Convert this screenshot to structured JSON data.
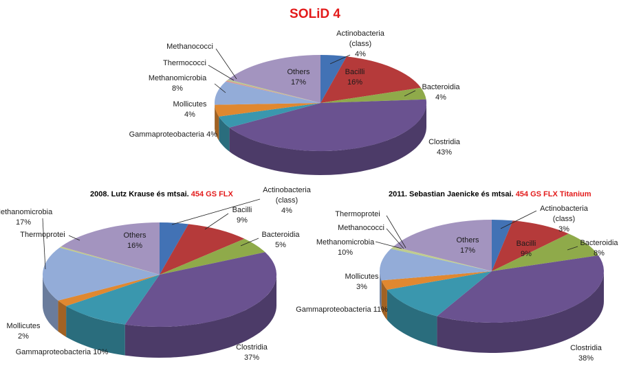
{
  "title": "SOLiD 4",
  "colors": {
    "Actinobacteria (class)": "#4272b5",
    "Bacilli": "#b53a3a",
    "Bacteroidia": "#8faa4a",
    "Clostridia": "#6a5290",
    "Gammaproteobacteria": "#3a97ae",
    "Mollicutes": "#e08830",
    "Methanomicrobia": "#93acd8",
    "Thermococci": "#d89696",
    "Methanococci": "#b8cc8c",
    "Thermoprotei": "#c2c98a",
    "Others": "#a394bf"
  },
  "chart_data": [
    {
      "type": "pie",
      "title": "SOLiD 4",
      "subtitle": null,
      "slices": [
        {
          "name": "Actinobacteria (class)",
          "value": 4
        },
        {
          "name": "Bacilli",
          "value": 16
        },
        {
          "name": "Bacteroidia",
          "value": 4
        },
        {
          "name": "Clostridia",
          "value": 43
        },
        {
          "name": "Gammaproteobacteria",
          "value": 4
        },
        {
          "name": "Mollicutes",
          "value": 4
        },
        {
          "name": "Methanomicrobia",
          "value": 8
        },
        {
          "name": "Thermococci",
          "value": 0.4
        },
        {
          "name": "Methanococci",
          "value": 0.4
        },
        {
          "name": "Others",
          "value": 17
        }
      ],
      "labels": [
        {
          "slice": 0,
          "lines": [
            "Actinobacteria",
            "(class)",
            "4%"
          ],
          "align": "middle",
          "leader": true
        },
        {
          "slice": 1,
          "lines": [
            "Bacilli",
            "16%"
          ],
          "align": "middle",
          "leader": false
        },
        {
          "slice": 2,
          "lines": [
            "Bacteroidia",
            "4%"
          ],
          "align": "middle",
          "leader": true
        },
        {
          "slice": 3,
          "lines": [
            "Clostridia",
            "43%"
          ],
          "align": "middle",
          "leader": false
        },
        {
          "slice": 4,
          "lines": [
            "Gammaproteobacteria 4%"
          ],
          "align": "end",
          "leader": false
        },
        {
          "slice": 5,
          "lines": [
            "Mollicutes",
            "4%"
          ],
          "align": "middle",
          "leader": false
        },
        {
          "slice": 6,
          "lines": [
            "Methanomicrobia",
            "8%"
          ],
          "align": "middle",
          "leader": true
        },
        {
          "slice": 7,
          "lines": [
            "Thermococci"
          ],
          "align": "end",
          "leader": true
        },
        {
          "slice": 8,
          "lines": [
            "Methanococci"
          ],
          "align": "end",
          "leader": true
        },
        {
          "slice": 9,
          "lines": [
            "Others",
            "17%"
          ],
          "align": "middle",
          "leader": false
        }
      ]
    },
    {
      "type": "pie",
      "title": null,
      "subtitle": {
        "text": "2008. Lutz Krause  és mtsai. ",
        "highlight": "454 GS FLX"
      },
      "slices": [
        {
          "name": "Actinobacteria (class)",
          "value": 4
        },
        {
          "name": "Bacilli",
          "value": 9
        },
        {
          "name": "Bacteroidia",
          "value": 5
        },
        {
          "name": "Clostridia",
          "value": 37
        },
        {
          "name": "Gammaproteobacteria",
          "value": 10
        },
        {
          "name": "Mollicutes",
          "value": 2
        },
        {
          "name": "Methanomicrobia",
          "value": 17
        },
        {
          "name": "Thermoprotei",
          "value": 0.4
        },
        {
          "name": "Others",
          "value": 16
        }
      ],
      "labels": [
        {
          "slice": 0,
          "lines": [
            "Actinobacteria",
            "(class)",
            "4%"
          ],
          "align": "middle",
          "leader": true
        },
        {
          "slice": 1,
          "lines": [
            "Bacilli",
            "9%"
          ],
          "align": "middle",
          "leader": true
        },
        {
          "slice": 2,
          "lines": [
            "Bacteroidia",
            "5%"
          ],
          "align": "middle",
          "leader": true
        },
        {
          "slice": 3,
          "lines": [
            "Clostridia",
            "37%"
          ],
          "align": "middle",
          "leader": false
        },
        {
          "slice": 4,
          "lines": [
            "Gammaproteobacteria 10%"
          ],
          "align": "middle",
          "leader": false
        },
        {
          "slice": 5,
          "lines": [
            "Mollicutes",
            "2%"
          ],
          "align": "middle",
          "leader": false
        },
        {
          "slice": 6,
          "lines": [
            "Methanomicrobia",
            "17%"
          ],
          "align": "middle",
          "leader": true
        },
        {
          "slice": 7,
          "lines": [
            "Thermoprotei"
          ],
          "align": "middle",
          "leader": true
        },
        {
          "slice": 8,
          "lines": [
            "Others",
            "16%"
          ],
          "align": "middle",
          "leader": false
        }
      ]
    },
    {
      "type": "pie",
      "title": null,
      "subtitle": {
        "text": "2011. Sebastian Jaenicke  és mtsai. ",
        "highlight": "454  GS FLX Titanium"
      },
      "slices": [
        {
          "name": "Actinobacteria (class)",
          "value": 3
        },
        {
          "name": "Bacilli",
          "value": 9
        },
        {
          "name": "Bacteroidia",
          "value": 8
        },
        {
          "name": "Clostridia",
          "value": 38
        },
        {
          "name": "Gammaproteobacteria",
          "value": 11
        },
        {
          "name": "Mollicutes",
          "value": 3
        },
        {
          "name": "Methanomicrobia",
          "value": 10
        },
        {
          "name": "Methanococci",
          "value": 0.4
        },
        {
          "name": "Thermoprotei",
          "value": 0.4
        },
        {
          "name": "Others",
          "value": 17
        }
      ],
      "labels": [
        {
          "slice": 0,
          "lines": [
            "Actinobacteria",
            "(class)",
            "3%"
          ],
          "align": "middle",
          "leader": true
        },
        {
          "slice": 1,
          "lines": [
            "Bacilli",
            "9%"
          ],
          "align": "middle",
          "leader": false
        },
        {
          "slice": 2,
          "lines": [
            "Bacteroidia",
            "8%"
          ],
          "align": "middle",
          "leader": true
        },
        {
          "slice": 3,
          "lines": [
            "Clostridia",
            "38%"
          ],
          "align": "middle",
          "leader": false
        },
        {
          "slice": 4,
          "lines": [
            "Gammaproteobacteria 11%"
          ],
          "align": "middle",
          "leader": false
        },
        {
          "slice": 5,
          "lines": [
            "Mollicutes",
            "3%"
          ],
          "align": "middle",
          "leader": false
        },
        {
          "slice": 6,
          "lines": [
            "Methanomicrobia",
            "10%"
          ],
          "align": "middle",
          "leader": true
        },
        {
          "slice": 7,
          "lines": [
            "Methanococci"
          ],
          "align": "middle",
          "leader": true
        },
        {
          "slice": 8,
          "lines": [
            "Thermoprotei"
          ],
          "align": "middle",
          "leader": true
        },
        {
          "slice": 9,
          "lines": [
            "Others",
            "17%"
          ],
          "align": "middle",
          "leader": false
        }
      ]
    }
  ]
}
